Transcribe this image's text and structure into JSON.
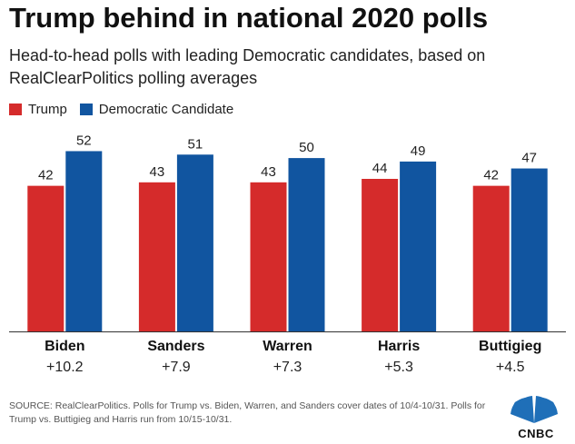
{
  "chart_data": {
    "type": "bar",
    "title": "Trump behind in national 2020 polls",
    "subtitle": "Head-to-head polls with leading Democratic candidates, based on RealClearPolitics polling averages",
    "categories": [
      "Biden",
      "Sanders",
      "Warren",
      "Harris",
      "Buttigieg"
    ],
    "margins": [
      "+10.2",
      "+7.9",
      "+7.3",
      "+5.3",
      "+4.5"
    ],
    "series": [
      {
        "name": "Trump",
        "color": "#d52b2b",
        "values": [
          42,
          43,
          43,
          44,
          42
        ]
      },
      {
        "name": "Democratic Candidate",
        "color": "#1155a0",
        "values": [
          52,
          51,
          50,
          49,
          47
        ]
      }
    ],
    "ylim": [
      0,
      55
    ],
    "xlabel": "",
    "ylabel": ""
  },
  "source": "SOURCE: RealClearPolitics. Polls for Trump vs. Biden, Warren, and Sanders cover dates of 10/4-10/31. Polls for Trump vs. Buttigieg and Harris run from 10/15-10/31.",
  "logo": {
    "text": "CNBC",
    "icon": "nbc-peacock-icon"
  }
}
